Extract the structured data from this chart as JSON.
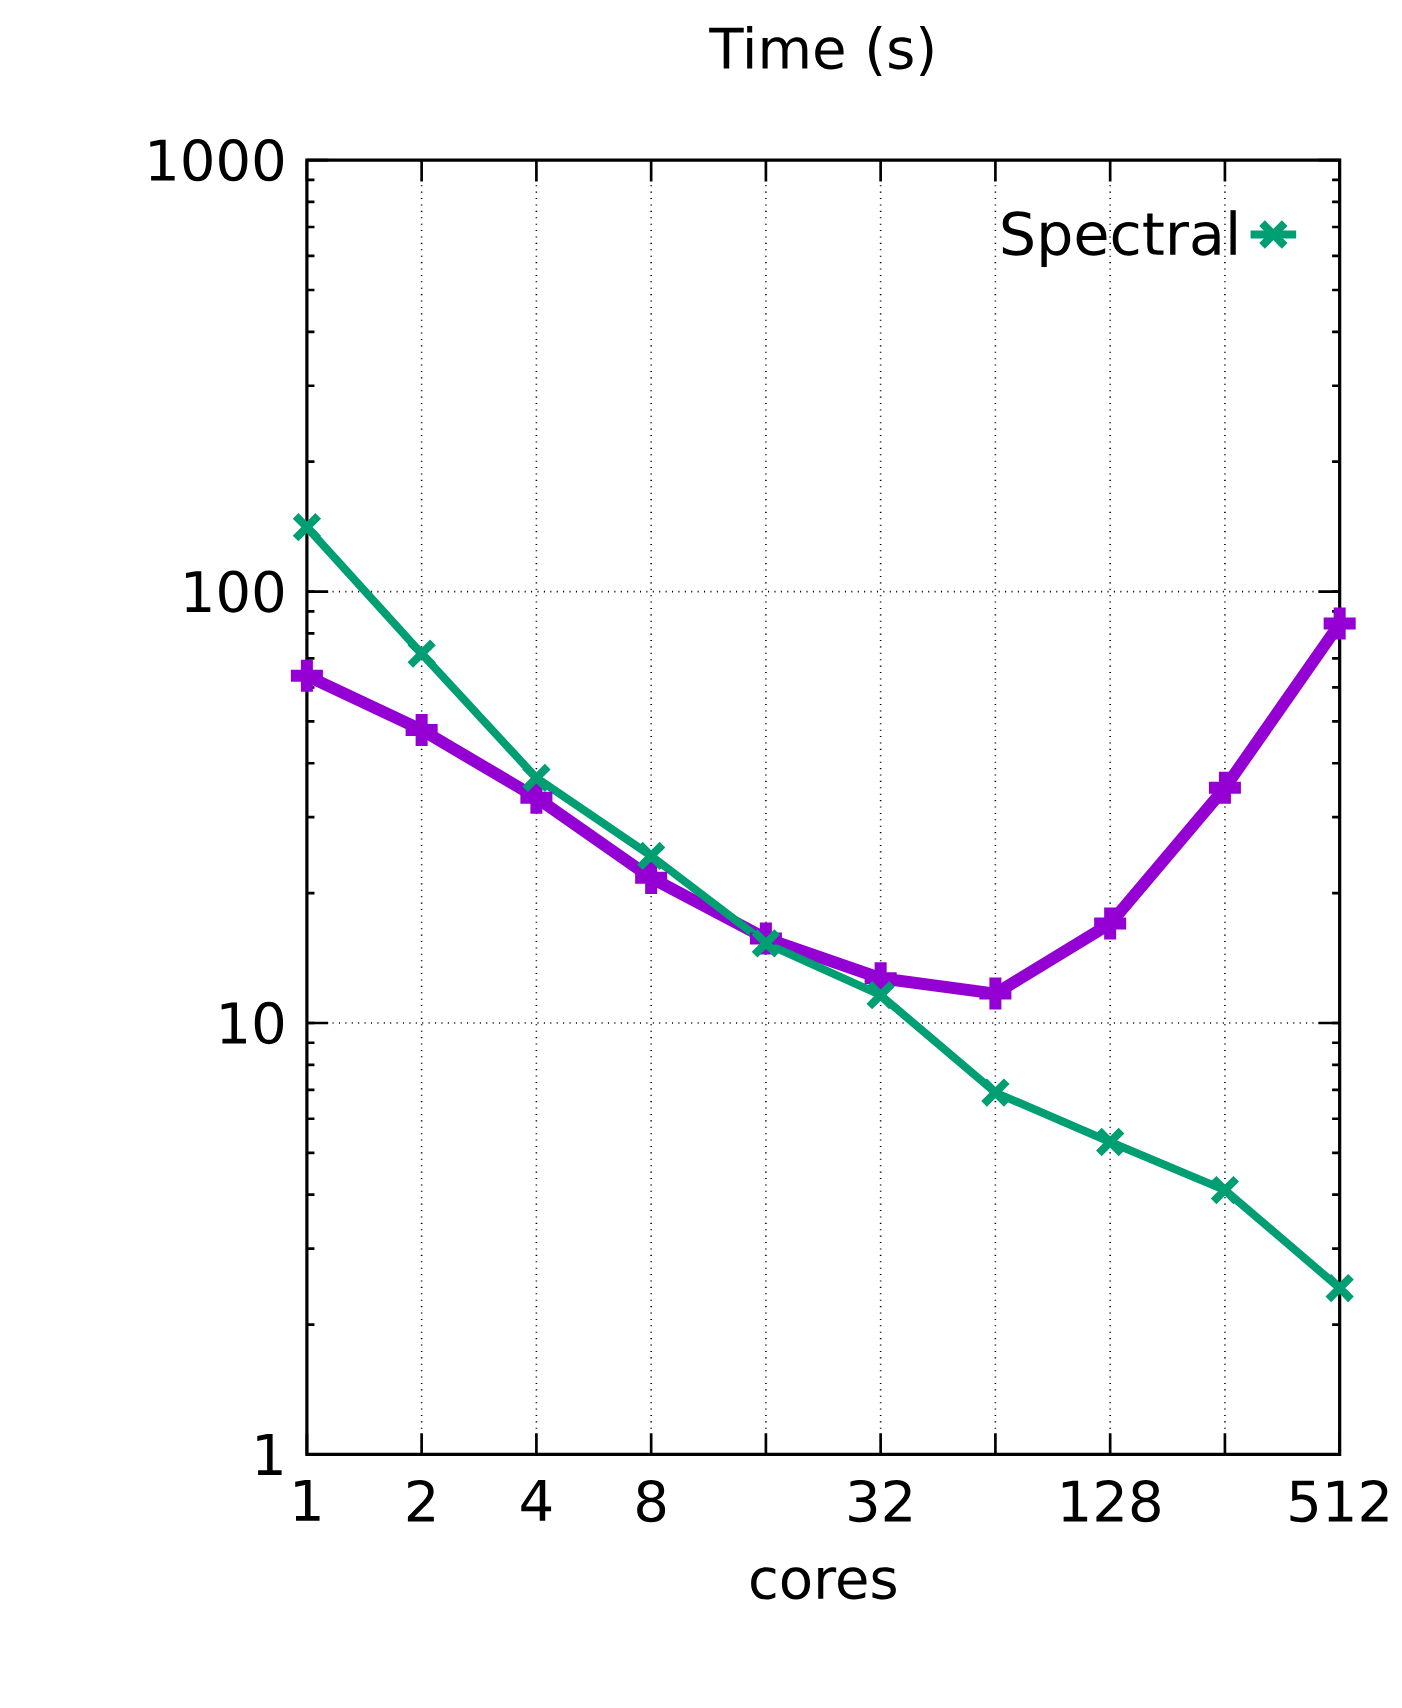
{
  "chart_data": {
    "type": "line",
    "title": "Time (s)",
    "xlabel": "cores",
    "log": "xy",
    "grid": true,
    "legend": "top right",
    "line_style": "solid",
    "x": [
      1,
      2,
      4,
      8,
      16,
      32,
      64,
      128,
      256,
      512
    ],
    "xlim": [
      1,
      512
    ],
    "ylim": [
      1,
      1000
    ],
    "xticks": [
      1,
      2,
      4,
      8,
      {
        "value": 16,
        "label": null
      },
      32,
      {
        "value": 64,
        "label": null
      },
      128,
      {
        "value": 256,
        "label": null
      },
      512
    ],
    "yticks": [
      1,
      10,
      100,
      1000
    ],
    "series": [
      {
        "color": "#9400d3",
        "marker": "plus",
        "values": [
          63.8,
          47.8,
          33.3,
          21.7,
          15.7,
          12.7,
          11.7,
          17.0,
          35.1,
          84.3
        ]
      },
      {
        "name": "Spectral",
        "color": "#009e73",
        "marker": "cross",
        "values": [
          141,
          71.8,
          37.0,
          24.4,
          15.3,
          11.6,
          6.9,
          5.3,
          4.1,
          2.43
        ]
      }
    ]
  }
}
